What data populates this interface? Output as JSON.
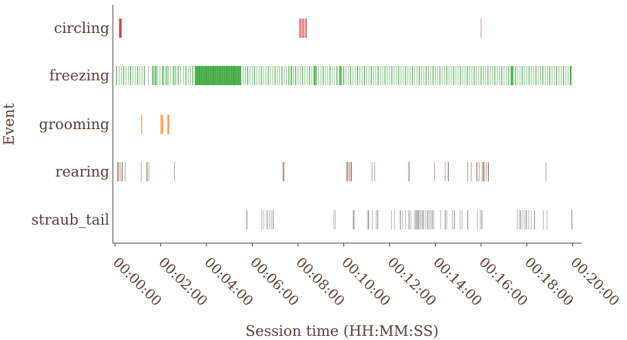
{
  "chart_data": {
    "type": "event_raster",
    "xlabel": "Session time (HH:MM:SS)",
    "ylabel": "Event",
    "xlim": [
      0,
      1200
    ],
    "x_ticks": [
      {
        "seconds": 0,
        "label": "00:00:00"
      },
      {
        "seconds": 120,
        "label": "00:02:00"
      },
      {
        "seconds": 240,
        "label": "00:04:00"
      },
      {
        "seconds": 360,
        "label": "00:06:00"
      },
      {
        "seconds": 480,
        "label": "00:08:00"
      },
      {
        "seconds": 600,
        "label": "00:10:00"
      },
      {
        "seconds": 720,
        "label": "00:12:00"
      },
      {
        "seconds": 840,
        "label": "00:14:00"
      },
      {
        "seconds": 960,
        "label": "00:16:00"
      },
      {
        "seconds": 1080,
        "label": "00:18:00"
      },
      {
        "seconds": 1200,
        "label": "00:20:00"
      }
    ],
    "categories": [
      "circling",
      "freezing",
      "grooming",
      "rearing",
      "straub_tail"
    ],
    "series": [
      {
        "name": "circling",
        "color": "#d62728",
        "events": [
          12,
          13,
          14,
          15,
          16,
          17,
          485,
          487,
          490,
          493,
          496,
          499,
          502,
          960
        ]
      },
      {
        "name": "freezing",
        "color": "#2ca02c",
        "events": [
          4,
          11,
          17,
          23,
          29,
          35,
          41,
          47,
          53,
          59,
          65,
          71,
          77,
          88,
          98,
          100,
          104,
          106,
          108,
          112,
          118,
          125,
          127,
          132,
          136,
          140,
          146,
          153,
          157,
          160,
          166,
          172,
          180,
          186,
          192,
          198,
          204,
          210,
          216,
          222,
          228,
          234,
          240,
          246,
          252,
          258,
          264,
          270,
          276,
          282,
          288,
          294,
          300,
          306,
          312,
          318,
          324,
          330,
          336,
          342,
          348,
          354,
          360,
          366,
          372,
          378,
          384,
          390,
          396,
          402,
          408,
          414,
          420,
          426,
          432,
          438,
          444,
          450,
          456,
          462,
          468,
          474,
          480,
          486,
          492,
          498,
          504,
          510,
          516,
          522,
          528,
          534,
          540,
          546,
          552,
          558,
          564,
          570,
          576,
          582,
          588,
          594,
          600,
          606,
          612,
          618,
          624,
          630,
          636,
          642,
          648,
          654,
          660,
          666,
          672,
          678,
          684,
          690,
          696,
          702,
          708,
          714,
          720,
          726,
          732,
          738,
          744,
          750,
          756,
          762,
          768,
          774,
          780,
          786,
          792,
          798,
          804,
          810,
          816,
          822,
          828,
          834,
          840,
          846,
          852,
          858,
          864,
          870,
          876,
          882,
          888,
          894,
          900,
          906,
          912,
          918,
          924,
          930,
          936,
          942,
          948,
          954,
          960,
          966,
          972,
          978,
          984,
          990,
          996,
          1002,
          1008,
          1014,
          1020,
          1026,
          1032,
          1038,
          1044,
          1050,
          1056,
          1062,
          1068,
          1074,
          1080,
          1086,
          1092,
          1098,
          1104,
          1110,
          1116,
          1122,
          1128,
          1134,
          1140,
          1146,
          1152,
          1158,
          1164,
          1170,
          1176,
          1182,
          1188,
          1194
        ],
        "dense_spans": [
          [
            210,
            330
          ],
          [
            461,
            464
          ],
          [
            521,
            526
          ],
          [
            589,
            593
          ],
          [
            1038,
            1044
          ],
          [
            1194,
            1197
          ]
        ]
      },
      {
        "name": "grooming",
        "color": "#ff7f0e",
        "events": [
          70,
          120,
          122,
          124,
          126,
          138,
          140,
          142
        ]
      },
      {
        "name": "rearing",
        "color": "#8c564b",
        "events": [
          7,
          10,
          14,
          19,
          27,
          69,
          84,
          89,
          156,
          441,
          444,
          607,
          610,
          614,
          617,
          620,
          674,
          681,
          771,
          838,
          866,
          874,
          925,
          934,
          949,
          955,
          963,
          966,
          969,
          974,
          979,
          1130
        ]
      },
      {
        "name": "straub_tail",
        "color": "#7f7f7f",
        "events": [
          346,
          385,
          390,
          399,
          405,
          410,
          415,
          574,
          578,
          625,
          628,
          662,
          665,
          675,
          685,
          689,
          725,
          733,
          748,
          754,
          762,
          771,
          776,
          785,
          789,
          792,
          794,
          796,
          800,
          803,
          807,
          810,
          815,
          820,
          824,
          828,
          832,
          836,
          854,
          866,
          870,
          885,
          890,
          905,
          910,
          925,
          950,
          958,
          962,
          1055,
          1060,
          1064,
          1070,
          1075,
          1079,
          1085,
          1092,
          1100,
          1123,
          1133,
          1198
        ]
      }
    ]
  }
}
